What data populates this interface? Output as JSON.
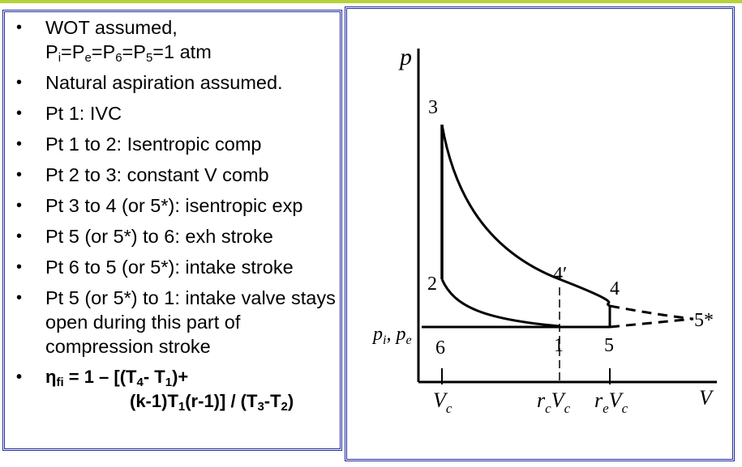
{
  "slide": {
    "accent_color": "#b6d23a",
    "frame_color": "#1f2a9a"
  },
  "bullets": [
    {
      "line1": "WOT assumed,",
      "p_i": "P",
      "sub_i": "i",
      "p_e": "=P",
      "sub_e": "e",
      "p_6": "=P",
      "sub_6": "6",
      "p_5": "=P",
      "sub_5": "5",
      "p_tail": "=1 atm"
    },
    {
      "text": "Natural aspiration assumed."
    },
    {
      "text": "Pt 1: IVC"
    },
    {
      "text": "Pt 1 to 2: Isentropic comp"
    },
    {
      "text": "Pt 2 to 3: constant V comb"
    },
    {
      "text": "Pt 3 to 4 (or 5*): isentropic exp"
    },
    {
      "text": "Pt 5 (or 5*) to 6: exh stroke"
    },
    {
      "text": "Pt 6 to 5 (or 5*): intake stroke"
    },
    {
      "text": "Pt 5 (or 5*) to 1: intake valve stays open during this part of compression stroke"
    }
  ],
  "efficiency": {
    "eta": "η",
    "eta_sub": "fi",
    "a": " = 1 – [(T",
    "a_sub": "4",
    "b": "- T",
    "b_sub": "1",
    "c": ")+",
    "d": "(k-1)T",
    "d_sub": "1",
    "e": "(r-1)] / (T",
    "e_sub": "3",
    "f": "-T",
    "f_sub": "2",
    "g": ")"
  },
  "diagram": {
    "y_axis_label": "p",
    "x_axis_label": "V",
    "pressure_label": "p",
    "pressure_label_sub1": "i",
    "pressure_label_sep": ", p",
    "pressure_label_sub2": "e",
    "points": {
      "p1": "1",
      "p2": "2",
      "p3": "3",
      "p4": "4",
      "p4prime": "4′",
      "p5": "5",
      "p5star": "5*",
      "p6": "6"
    },
    "ticks": {
      "vc": "V",
      "vc_sub": "c",
      "rcvc_r": "r",
      "rcvc_r_sub": "c",
      "rcvc_v": "V",
      "rcvc_v_sub": "c",
      "revc_r": "r",
      "revc_r_sub": "e",
      "revc_v": "V",
      "revc_v_sub": "c"
    }
  }
}
